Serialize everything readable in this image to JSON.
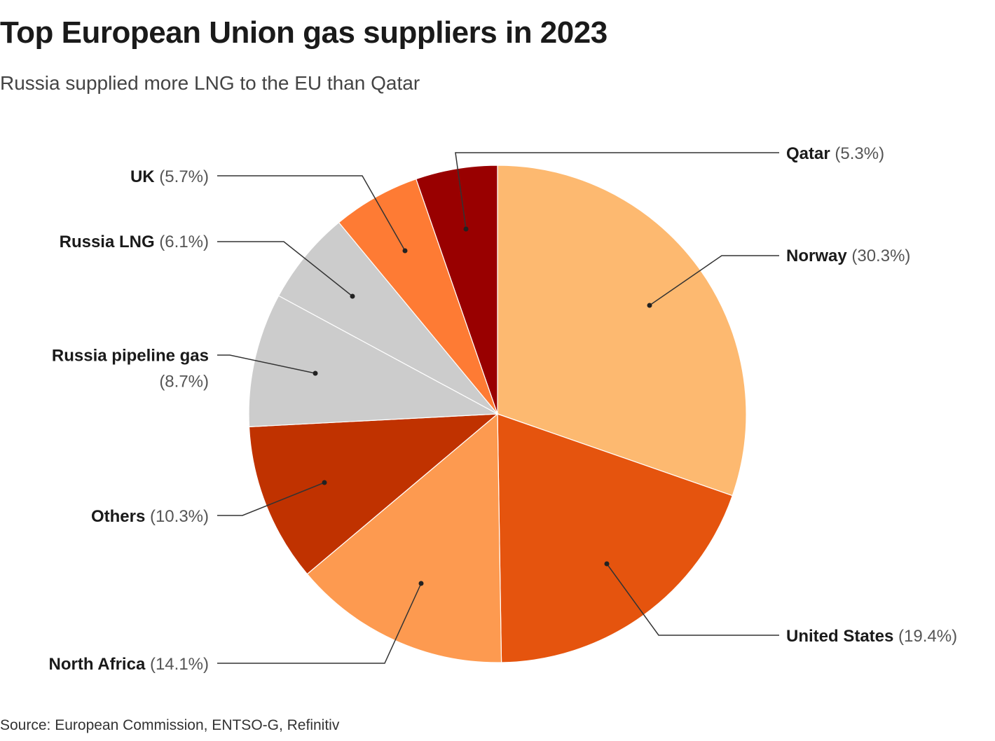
{
  "header": {
    "title": "Top European Union gas suppliers in 2023",
    "subtitle": "Russia supplied more LNG to the EU than Qatar"
  },
  "footer": {
    "source": "Source: European Commission, ENTSO-G, Refinitiv"
  },
  "chart_data": {
    "type": "pie",
    "title": "Top European Union gas suppliers in 2023",
    "unit": "%",
    "start": "12 o'clock, clockwise",
    "slices": [
      {
        "label": "Norway",
        "value": 30.3,
        "pct_text": "(30.3%)",
        "color": "#fdb970"
      },
      {
        "label": "United States",
        "value": 19.4,
        "pct_text": "(19.4%)",
        "color": "#e5540e"
      },
      {
        "label": "North Africa",
        "value": 14.1,
        "pct_text": "(14.1%)",
        "color": "#fd9a50"
      },
      {
        "label": "Others",
        "value": 10.3,
        "pct_text": "(10.3%)",
        "color": "#c03200"
      },
      {
        "label": "Russia pipeline gas",
        "value": 8.7,
        "pct_text": "(8.7%)",
        "color": "#cccccc"
      },
      {
        "label": "Russia LNG",
        "value": 6.1,
        "pct_text": "(6.1%)",
        "color": "#cccccc"
      },
      {
        "label": "UK",
        "value": 5.7,
        "pct_text": "(5.7%)",
        "color": "#fe7b34"
      },
      {
        "label": "Qatar",
        "value": 5.3,
        "pct_text": "(5.3%)",
        "color": "#990000"
      }
    ]
  }
}
